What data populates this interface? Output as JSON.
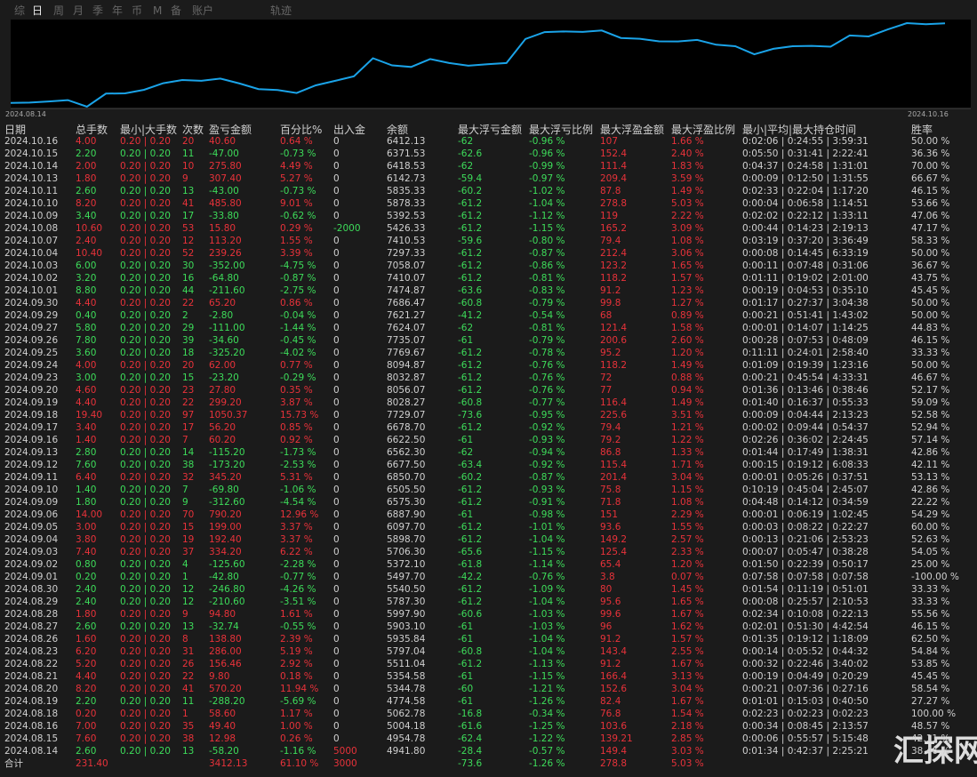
{
  "tabs": [
    "综",
    "日",
    "周",
    "月",
    "季",
    "年",
    "币",
    "M",
    "备",
    "账户",
    "轨迹"
  ],
  "chart": {
    "start_label": "2024.08.14",
    "end_label": "2024.10.16"
  },
  "table": {
    "headers": [
      "日期",
      "总手数",
      "最小|大手数",
      "次数",
      "盈亏金额",
      "百分比%",
      "出入金",
      "余额",
      "最大浮亏金额",
      "最大浮亏比例",
      "最大浮盈金额",
      "最大浮盈比例",
      "最小|平均|最大持仓时间",
      "胜率"
    ],
    "rows": [
      [
        "2024.10.16",
        "4.00",
        "0.20 | 0.20",
        "20",
        "40.60",
        "0.64 %",
        "0",
        "6412.13",
        "-62",
        "-0.96 %",
        "107",
        "1.66 %",
        "0:02:06 | 0:24:55 | 3:59:31",
        "50.00 %"
      ],
      [
        "2024.10.15",
        "2.20",
        "0.20 | 0.20",
        "11",
        "-47.00",
        "-0.73 %",
        "0",
        "6371.53",
        "-62.6",
        "-0.96 %",
        "152.4",
        "2.40 %",
        "0:05:50 | 0:31:41 | 2:22:41",
        "36.36 %"
      ],
      [
        "2024.10.14",
        "2.00",
        "0.20 | 0.20",
        "10",
        "275.80",
        "4.49 %",
        "0",
        "6418.53",
        "-62",
        "-0.99 %",
        "111.4",
        "1.83 %",
        "0:04:37 | 0:24:58 | 1:31:01",
        "70.00 %"
      ],
      [
        "2024.10.13",
        "1.80",
        "0.20 | 0.20",
        "9",
        "307.40",
        "5.27 %",
        "0",
        "6142.73",
        "-59.4",
        "-0.97 %",
        "209.4",
        "3.59 %",
        "0:00:09 | 0:12:50 | 1:31:55",
        "66.67 %"
      ],
      [
        "2024.10.11",
        "2.60",
        "0.20 | 0.20",
        "13",
        "-43.00",
        "-0.73 %",
        "0",
        "5835.33",
        "-60.2",
        "-1.02 %",
        "87.8",
        "1.49 %",
        "0:02:33 | 0:22:04 | 1:17:20",
        "46.15 %"
      ],
      [
        "2024.10.10",
        "8.20",
        "0.20 | 0.20",
        "41",
        "485.80",
        "9.01 %",
        "0",
        "5878.33",
        "-61.2",
        "-1.04 %",
        "278.8",
        "5.03 %",
        "0:00:04 | 0:06:58 | 1:14:51",
        "53.66 %"
      ],
      [
        "2024.10.09",
        "3.40",
        "0.20 | 0.20",
        "17",
        "-33.80",
        "-0.62 %",
        "0",
        "5392.53",
        "-61.2",
        "-1.12 %",
        "119",
        "2.22 %",
        "0:02:02 | 0:22:12 | 1:33:11",
        "47.06 %"
      ],
      [
        "2024.10.08",
        "10.60",
        "0.20 | 0.20",
        "53",
        "15.80",
        "0.29 %",
        "-2000",
        "5426.33",
        "-61.2",
        "-1.15 %",
        "165.2",
        "3.09 %",
        "0:00:44 | 0:14:23 | 2:19:13",
        "47.17 %"
      ],
      [
        "2024.10.07",
        "2.40",
        "0.20 | 0.20",
        "12",
        "113.20",
        "1.55 %",
        "0",
        "7410.53",
        "-59.6",
        "-0.80 %",
        "79.4",
        "1.08 %",
        "0:03:19 | 0:37:20 | 3:36:49",
        "58.33 %"
      ],
      [
        "2024.10.04",
        "10.40",
        "0.20 | 0.20",
        "52",
        "239.26",
        "3.39 %",
        "0",
        "7297.33",
        "-61.2",
        "-0.87 %",
        "212.4",
        "3.06 %",
        "0:00:08 | 0:14:45 | 6:33:19",
        "50.00 %"
      ],
      [
        "2024.10.03",
        "6.00",
        "0.20 | 0.20",
        "30",
        "-352.00",
        "-4.75 %",
        "0",
        "7058.07",
        "-61.2",
        "-0.86 %",
        "123.2",
        "1.65 %",
        "0:00:11 | 0:07:48 | 0:31:06",
        "36.67 %"
      ],
      [
        "2024.10.02",
        "3.20",
        "0.20 | 0.20",
        "16",
        "-64.80",
        "-0.87 %",
        "0",
        "7410.07",
        "-61.2",
        "-0.81 %",
        "118.2",
        "1.57 %",
        "0:01:11 | 0:19:02 | 2:01:00",
        "43.75 %"
      ],
      [
        "2024.10.01",
        "8.80",
        "0.20 | 0.20",
        "44",
        "-211.60",
        "-2.75 %",
        "0",
        "7474.87",
        "-63.6",
        "-0.83 %",
        "91.2",
        "1.23 %",
        "0:00:19 | 0:04:53 | 0:35:10",
        "45.45 %"
      ],
      [
        "2024.09.30",
        "4.40",
        "0.20 | 0.20",
        "22",
        "65.20",
        "0.86 %",
        "0",
        "7686.47",
        "-60.8",
        "-0.79 %",
        "99.8",
        "1.27 %",
        "0:01:17 | 0:27:37 | 3:04:38",
        "50.00 %"
      ],
      [
        "2024.09.29",
        "0.40",
        "0.20 | 0.20",
        "2",
        "-2.80",
        "-0.04 %",
        "0",
        "7621.27",
        "-41.2",
        "-0.54 %",
        "68",
        "0.89 %",
        "0:00:21 | 0:51:41 | 1:43:02",
        "50.00 %"
      ],
      [
        "2024.09.27",
        "5.80",
        "0.20 | 0.20",
        "29",
        "-111.00",
        "-1.44 %",
        "0",
        "7624.07",
        "-62",
        "-0.81 %",
        "121.4",
        "1.58 %",
        "0:00:01 | 0:14:07 | 1:14:25",
        "44.83 %"
      ],
      [
        "2024.09.26",
        "7.80",
        "0.20 | 0.20",
        "39",
        "-34.60",
        "-0.45 %",
        "0",
        "7735.07",
        "-61",
        "-0.79 %",
        "200.6",
        "2.60 %",
        "0:00:28 | 0:07:53 | 0:48:09",
        "46.15 %"
      ],
      [
        "2024.09.25",
        "3.60",
        "0.20 | 0.20",
        "18",
        "-325.20",
        "-4.02 %",
        "0",
        "7769.67",
        "-61.2",
        "-0.78 %",
        "95.2",
        "1.20 %",
        "0:11:11 | 0:24:01 | 2:58:40",
        "33.33 %"
      ],
      [
        "2024.09.24",
        "4.00",
        "0.20 | 0.20",
        "20",
        "62.00",
        "0.77 %",
        "0",
        "8094.87",
        "-61.2",
        "-0.76 %",
        "118.2",
        "1.49 %",
        "0:01:09 | 0:19:39 | 1:23:16",
        "50.00 %"
      ],
      [
        "2024.09.23",
        "3.00",
        "0.20 | 0.20",
        "15",
        "-23.20",
        "-0.29 %",
        "0",
        "8032.87",
        "-61.2",
        "-0.76 %",
        "72",
        "0.88 %",
        "0:00:21 | 0:45:54 | 4:33:31",
        "46.67 %"
      ],
      [
        "2024.09.20",
        "4.60",
        "0.20 | 0.20",
        "23",
        "27.80",
        "0.35 %",
        "0",
        "8056.07",
        "-61.2",
        "-0.76 %",
        "77",
        "0.94 %",
        "0:01:36 | 0:13:46 | 0:38:46",
        "52.17 %"
      ],
      [
        "2024.09.19",
        "4.40",
        "0.20 | 0.20",
        "22",
        "299.20",
        "3.87 %",
        "0",
        "8028.27",
        "-60.8",
        "-0.77 %",
        "116.4",
        "1.49 %",
        "0:01:40 | 0:16:37 | 0:55:33",
        "59.09 %"
      ],
      [
        "2024.09.18",
        "19.40",
        "0.20 | 0.20",
        "97",
        "1050.37",
        "15.73 %",
        "0",
        "7729.07",
        "-73.6",
        "-0.95 %",
        "225.6",
        "3.51 %",
        "0:00:09 | 0:04:44 | 2:13:23",
        "52.58 %"
      ],
      [
        "2024.09.17",
        "3.40",
        "0.20 | 0.20",
        "17",
        "56.20",
        "0.85 %",
        "0",
        "6678.70",
        "-61.2",
        "-0.92 %",
        "79.4",
        "1.21 %",
        "0:00:02 | 0:09:44 | 0:54:37",
        "52.94 %"
      ],
      [
        "2024.09.16",
        "1.40",
        "0.20 | 0.20",
        "7",
        "60.20",
        "0.92 %",
        "0",
        "6622.50",
        "-61",
        "-0.93 %",
        "79.2",
        "1.22 %",
        "0:02:26 | 0:36:02 | 2:24:45",
        "57.14 %"
      ],
      [
        "2024.09.13",
        "2.80",
        "0.20 | 0.20",
        "14",
        "-115.20",
        "-1.73 %",
        "0",
        "6562.30",
        "-62",
        "-0.94 %",
        "86.8",
        "1.33 %",
        "0:01:44 | 0:17:49 | 1:38:31",
        "42.86 %"
      ],
      [
        "2024.09.12",
        "7.60",
        "0.20 | 0.20",
        "38",
        "-173.20",
        "-2.53 %",
        "0",
        "6677.50",
        "-63.4",
        "-0.92 %",
        "115.4",
        "1.71 %",
        "0:00:15 | 0:19:12 | 6:08:33",
        "42.11 %"
      ],
      [
        "2024.09.11",
        "6.40",
        "0.20 | 0.20",
        "32",
        "345.20",
        "5.31 %",
        "0",
        "6850.70",
        "-60.2",
        "-0.87 %",
        "201.4",
        "3.04 %",
        "0:00:01 | 0:05:26 | 0:37:51",
        "53.13 %"
      ],
      [
        "2024.09.10",
        "1.40",
        "0.20 | 0.20",
        "7",
        "-69.80",
        "-1.06 %",
        "0",
        "6505.50",
        "-61.2",
        "-0.93 %",
        "75.8",
        "1.15 %",
        "0:10:19 | 0:45:04 | 2:45:07",
        "42.86 %"
      ],
      [
        "2024.09.09",
        "1.80",
        "0.20 | 0.20",
        "9",
        "-312.60",
        "-4.54 %",
        "0",
        "6575.30",
        "-61.2",
        "-0.91 %",
        "71.8",
        "1.08 %",
        "0:04:48 | 0:14:12 | 0:34:59",
        "22.22 %"
      ],
      [
        "2024.09.06",
        "14.00",
        "0.20 | 0.20",
        "70",
        "790.20",
        "12.96 %",
        "0",
        "6887.90",
        "-61",
        "-0.98 %",
        "151",
        "2.29 %",
        "0:00:01 | 0:06:19 | 1:02:45",
        "54.29 %"
      ],
      [
        "2024.09.05",
        "3.00",
        "0.20 | 0.20",
        "15",
        "199.00",
        "3.37 %",
        "0",
        "6097.70",
        "-61.2",
        "-1.01 %",
        "93.6",
        "1.55 %",
        "0:00:03 | 0:08:22 | 0:22:27",
        "60.00 %"
      ],
      [
        "2024.09.04",
        "3.80",
        "0.20 | 0.20",
        "19",
        "192.40",
        "3.37 %",
        "0",
        "5898.70",
        "-61.2",
        "-1.04 %",
        "149.2",
        "2.57 %",
        "0:00:13 | 0:21:06 | 2:53:23",
        "52.63 %"
      ],
      [
        "2024.09.03",
        "7.40",
        "0.20 | 0.20",
        "37",
        "334.20",
        "6.22 %",
        "0",
        "5706.30",
        "-65.6",
        "-1.15 %",
        "125.4",
        "2.33 %",
        "0:00:07 | 0:05:47 | 0:38:28",
        "54.05 %"
      ],
      [
        "2024.09.02",
        "0.80",
        "0.20 | 0.20",
        "4",
        "-125.60",
        "-2.28 %",
        "0",
        "5372.10",
        "-61.8",
        "-1.14 %",
        "65.4",
        "1.20 %",
        "0:01:50 | 0:22:39 | 0:50:17",
        "25.00 %"
      ],
      [
        "2024.09.01",
        "0.20",
        "0.20 | 0.20",
        "1",
        "-42.80",
        "-0.77 %",
        "0",
        "5497.70",
        "-42.2",
        "-0.76 %",
        "3.8",
        "0.07 %",
        "0:07:58 | 0:07:58 | 0:07:58",
        "-100.00 %"
      ],
      [
        "2024.08.30",
        "2.40",
        "0.20 | 0.20",
        "12",
        "-246.80",
        "-4.26 %",
        "0",
        "5540.50",
        "-61.2",
        "-1.09 %",
        "80",
        "1.45 %",
        "0:01:54 | 0:11:19 | 0:51:01",
        "33.33 %"
      ],
      [
        "2024.08.29",
        "2.40",
        "0.20 | 0.20",
        "12",
        "-210.60",
        "-3.51 %",
        "0",
        "5787.30",
        "-61.2",
        "-1.04 %",
        "95.6",
        "1.65 %",
        "0:00:08 | 0:25:57 | 2:10:53",
        "33.33 %"
      ],
      [
        "2024.08.28",
        "1.80",
        "0.20 | 0.20",
        "9",
        "94.80",
        "1.61 %",
        "0",
        "5997.90",
        "-60.6",
        "-1.03 %",
        "99.6",
        "1.67 %",
        "0:02:34 | 0:10:08 | 0:22:13",
        "55.56 %"
      ],
      [
        "2024.08.27",
        "2.60",
        "0.20 | 0.20",
        "13",
        "-32.74",
        "-0.55 %",
        "0",
        "5903.10",
        "-61",
        "-1.03 %",
        "96",
        "1.62 %",
        "0:02:01 | 0:51:30 | 4:42:54",
        "46.15 %"
      ],
      [
        "2024.08.26",
        "1.60",
        "0.20 | 0.20",
        "8",
        "138.80",
        "2.39 %",
        "0",
        "5935.84",
        "-61",
        "-1.04 %",
        "91.2",
        "1.57 %",
        "0:01:35 | 0:19:12 | 1:18:09",
        "62.50 %"
      ],
      [
        "2024.08.23",
        "6.20",
        "0.20 | 0.20",
        "31",
        "286.00",
        "5.19 %",
        "0",
        "5797.04",
        "-60.8",
        "-1.04 %",
        "143.4",
        "2.55 %",
        "0:00:14 | 0:05:52 | 0:44:32",
        "54.84 %"
      ],
      [
        "2024.08.22",
        "5.20",
        "0.20 | 0.20",
        "26",
        "156.46",
        "2.92 %",
        "0",
        "5511.04",
        "-61.2",
        "-1.13 %",
        "91.2",
        "1.67 %",
        "0:00:32 | 0:22:46 | 3:40:02",
        "53.85 %"
      ],
      [
        "2024.08.21",
        "4.40",
        "0.20 | 0.20",
        "22",
        "9.80",
        "0.18 %",
        "0",
        "5354.58",
        "-61",
        "-1.15 %",
        "166.4",
        "3.13 %",
        "0:00:19 | 0:04:49 | 0:20:29",
        "45.45 %"
      ],
      [
        "2024.08.20",
        "8.20",
        "0.20 | 0.20",
        "41",
        "570.20",
        "11.94 %",
        "0",
        "5344.78",
        "-60",
        "-1.21 %",
        "152.6",
        "3.04 %",
        "0:00:21 | 0:07:36 | 0:27:16",
        "58.54 %"
      ],
      [
        "2024.08.19",
        "2.20",
        "0.20 | 0.20",
        "11",
        "-288.20",
        "-5.69 %",
        "0",
        "4774.58",
        "-61",
        "-1.26 %",
        "82.4",
        "1.67 %",
        "0:01:01 | 0:15:03 | 0:40:50",
        "27.27 %"
      ],
      [
        "2024.08.18",
        "0.20",
        "0.20 | 0.20",
        "1",
        "58.60",
        "1.17 %",
        "0",
        "5062.78",
        "-16.8",
        "-0.34 %",
        "76.8",
        "1.54 %",
        "0:02:23 | 0:02:23 | 0:02:23",
        "100.00 %"
      ],
      [
        "2024.08.16",
        "7.00",
        "0.20 | 0.20",
        "35",
        "49.40",
        "1.00 %",
        "0",
        "5004.18",
        "-61.6",
        "-1.25 %",
        "103.6",
        "2.18 %",
        "0:00:34 | 0:08:45 | 2:13:57",
        "48.57 %"
      ],
      [
        "2024.08.15",
        "7.60",
        "0.20 | 0.20",
        "38",
        "12.98",
        "0.26 %",
        "0",
        "4954.78",
        "-62.4",
        "-1.22 %",
        "139.21",
        "2.85 %",
        "0:00:06 | 0:55:57 | 5:15:48",
        "42.11 %"
      ],
      [
        "2024.08.14",
        "2.60",
        "0.20 | 0.20",
        "13",
        "-58.20",
        "-1.16 %",
        "5000",
        "4941.80",
        "-28.4",
        "-0.57 %",
        "149.4",
        "3.03 %",
        "0:01:34 | 0:42:37 | 2:25:21",
        "38.46 %"
      ]
    ],
    "total": [
      "合计",
      "231.40",
      null,
      null,
      "3412.13",
      "61.10 %",
      "3000",
      null,
      "-73.6",
      "-1.26 %",
      "278.8",
      "5.03 %",
      null,
      null
    ]
  },
  "watermark": "汇探网"
}
